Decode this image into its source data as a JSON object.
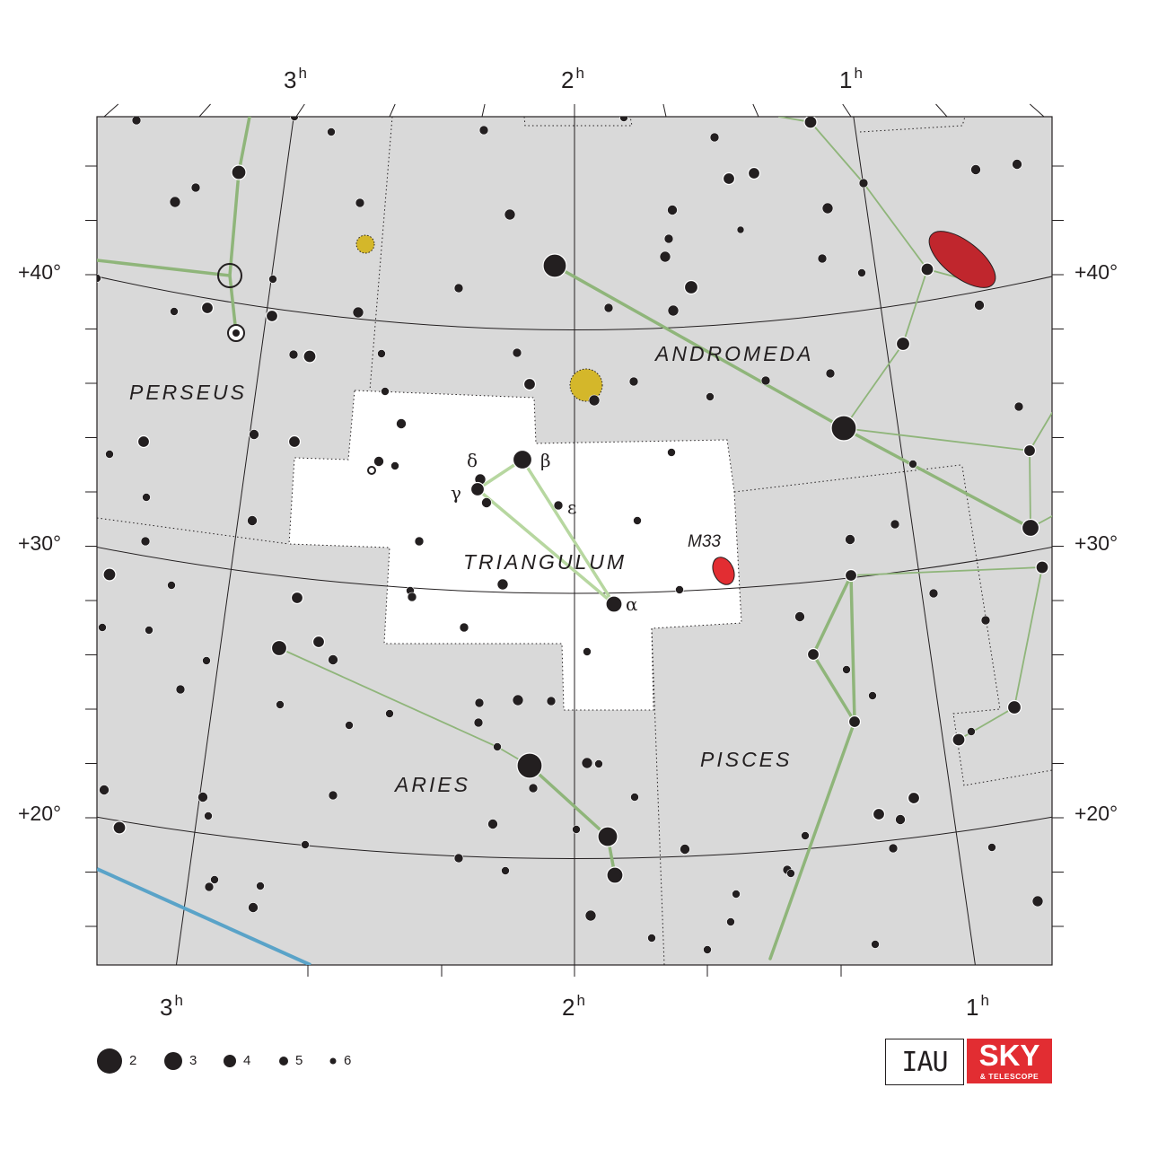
{
  "ra_labels": {
    "top": [
      "3",
      "2",
      "1"
    ],
    "bottom": [
      "3",
      "2",
      "1"
    ],
    "unit": "h"
  },
  "dec_labels": [
    "+40°",
    "+30°",
    "+20°"
  ],
  "constellations": [
    "PERSEUS",
    "ANDROMEDA",
    "TRIANGULUM",
    "ARIES",
    "PISCES"
  ],
  "star_labels": {
    "delta": "δ",
    "beta": "β",
    "gamma": "γ",
    "epsilon": "ε",
    "alpha": "α"
  },
  "deep_sky": {
    "m33": "M33"
  },
  "legend": {
    "magnitudes": [
      "2",
      "3",
      "4",
      "5",
      "6"
    ]
  },
  "logos": {
    "iau": "IAU",
    "sky": "SKY",
    "sky_sub": "& TELESCOPE"
  },
  "colors": {
    "background": "#d9d9d9",
    "highlight": "#ffffff",
    "stick_figure": "#8fb57a",
    "triangulum_figure": "#b7d7a0",
    "ecliptic": "#5aa3c8",
    "galaxy": "#c0262d",
    "cluster": "#d4b72a",
    "star": "#231f20"
  }
}
